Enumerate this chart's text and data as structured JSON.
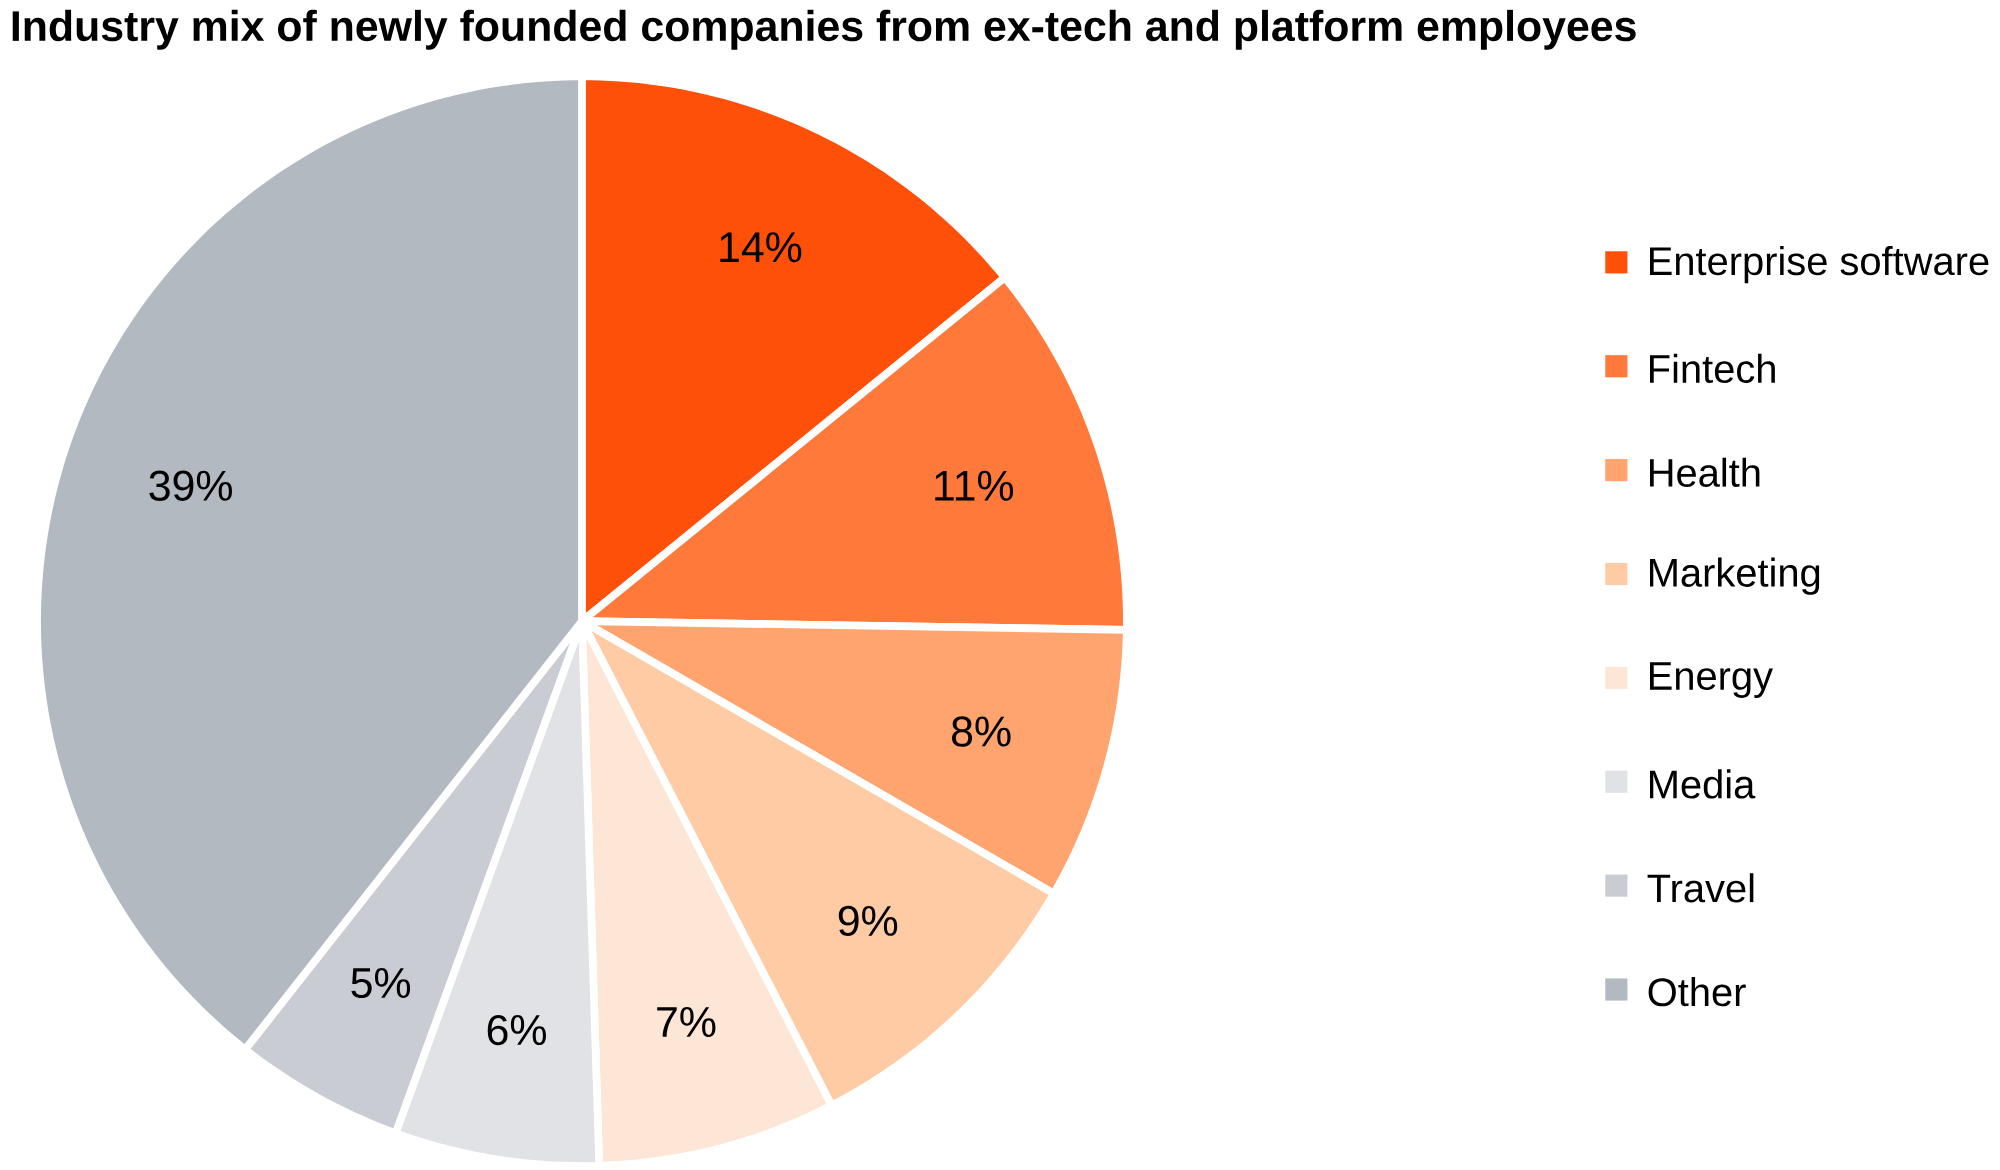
{
  "chart_data": {
    "type": "pie",
    "title": "Industry mix of newly founded companies from ex-tech and platform employees",
    "categories": [
      "Enterprise software",
      "Fintech",
      "Health",
      "Marketing",
      "Energy",
      "Media",
      "Travel",
      "Other"
    ],
    "values": [
      14,
      11,
      8,
      9,
      7,
      6,
      5,
      39
    ],
    "value_labels": [
      "14%",
      "11%",
      "8%",
      "9%",
      "7%",
      "6%",
      "5%",
      "39%"
    ],
    "colors": [
      "#ff5009",
      "#ff7a3a",
      "#ffa46e",
      "#ffcba5",
      "#fde6d5",
      "#e0e2e5",
      "#c9cdd3",
      "#b3b9c1"
    ],
    "legend": "right"
  }
}
